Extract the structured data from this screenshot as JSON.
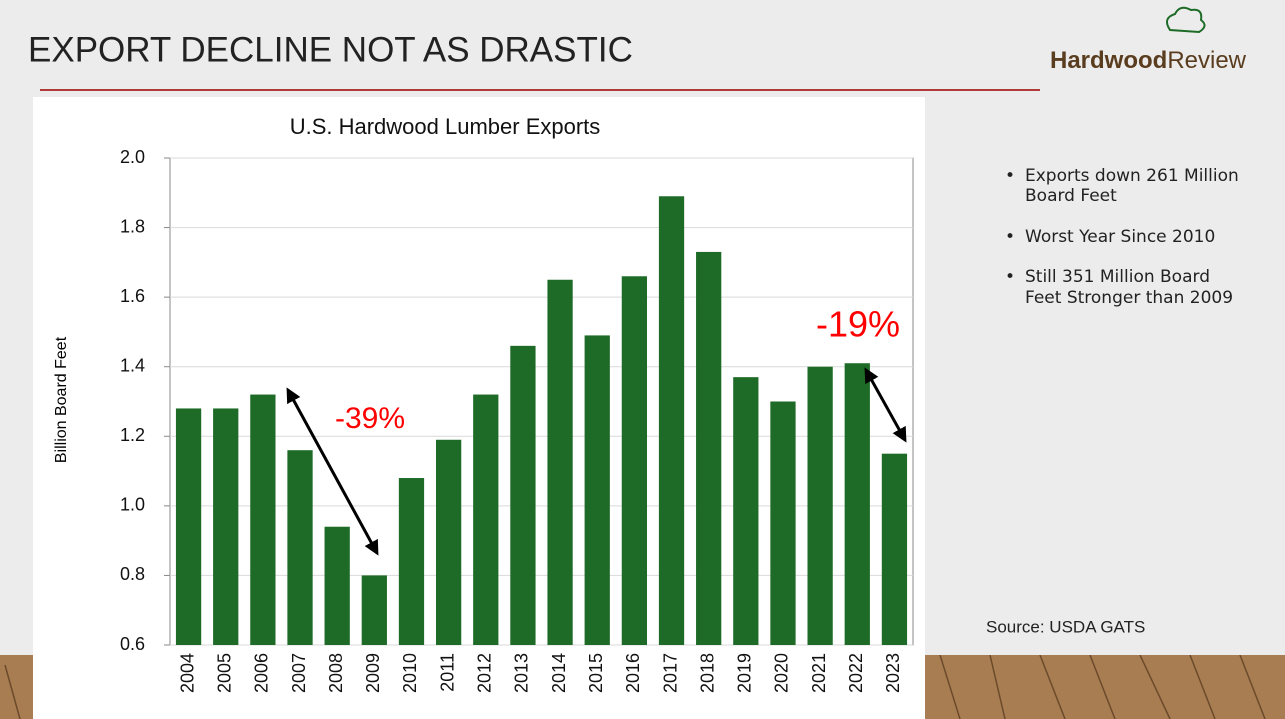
{
  "header": {
    "title": "EXPORT DECLINE NOT AS DRASTIC",
    "logo_bold": "Hardwood",
    "logo_light": "Review"
  },
  "bullets": [
    "Exports down 261 Million Board Feet",
    "Worst Year Since 2010",
    "Still 351 Million Board Feet Stronger than 2009"
  ],
  "source": "Source: USDA GATS",
  "chart_data": {
    "type": "bar",
    "title": "U.S. Hardwood Lumber Exports",
    "y_label": "Billion Board Feet",
    "categories": [
      "2004",
      "2005",
      "2006",
      "2007",
      "2008",
      "2009",
      "2010",
      "2011",
      "2012",
      "2013",
      "2014",
      "2015",
      "2016",
      "2017",
      "2018",
      "2019",
      "2020",
      "2021",
      "2022",
      "2023"
    ],
    "values": [
      1.28,
      1.28,
      1.32,
      1.16,
      0.94,
      0.8,
      1.08,
      1.19,
      1.32,
      1.46,
      1.65,
      1.49,
      1.66,
      1.89,
      1.73,
      1.37,
      1.3,
      1.4,
      1.41,
      1.15
    ],
    "color": "#1e6b27",
    "ylim": [
      0.6,
      2.0
    ],
    "yticks": [
      0.6,
      0.8,
      {
        "value": 1,
        "label": "1.0"
      },
      1.2,
      1.4,
      1.6,
      1.8,
      {
        "value": 2,
        "label": "2.0"
      }
    ],
    "grid": true,
    "annotations": [
      "-39%",
      "-19%"
    ]
  }
}
